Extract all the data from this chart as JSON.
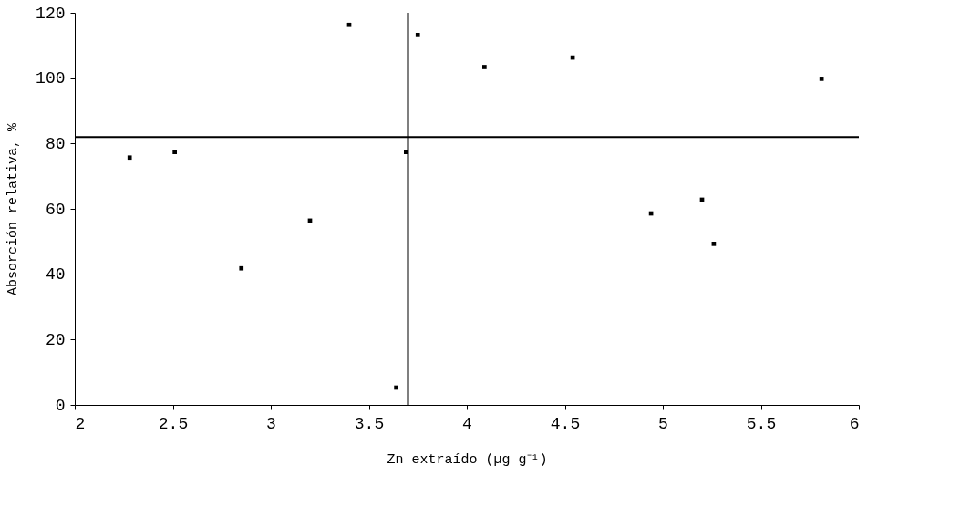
{
  "chart_data": {
    "type": "scatter",
    "xlabel": "Zn extraído (µg g⁻¹)",
    "ylabel": "Absorción relativa, %",
    "x": [
      2.28,
      2.51,
      2.85,
      3.2,
      3.4,
      3.64,
      3.69,
      3.75,
      4.09,
      4.54,
      4.94,
      5.2,
      5.26,
      5.81
    ],
    "series": [
      {
        "color": "#000000",
        "values": [
          75.7,
          77.4,
          41.8,
          56.4,
          116.3,
          5.3,
          77.4,
          113.2,
          103.4,
          106.3,
          58.6,
          62.8,
          49.3,
          99.8
        ]
      }
    ],
    "xlim": [
      2,
      6
    ],
    "xticks": [
      2,
      2.5,
      3,
      3.5,
      4,
      4.5,
      5,
      5.5,
      6
    ],
    "ylim": [
      0,
      120
    ],
    "yticks": [
      0,
      20,
      40,
      60,
      80,
      100,
      120
    ],
    "ref_lines": [
      {
        "axis": "x",
        "value": 3.7,
        "color": "#000000"
      },
      {
        "axis": "y",
        "value": 82,
        "color": "#000000"
      }
    ],
    "marker": "square",
    "grid": false
  }
}
